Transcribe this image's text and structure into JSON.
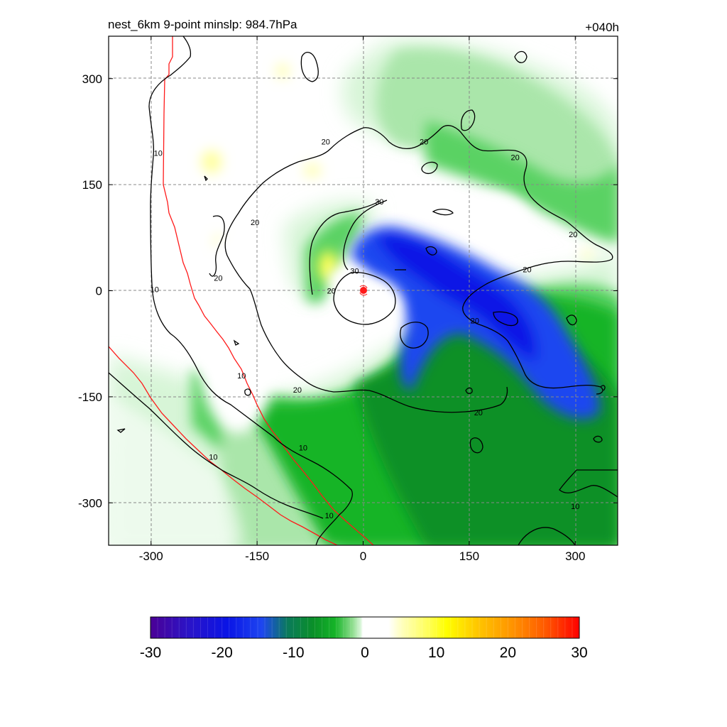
{
  "chart_data": {
    "type": "heatmap",
    "title_left": "nest_6km  9-point minslp: 984.7hPa",
    "title_right": "+040h",
    "xlabel": "",
    "ylabel": "",
    "xlim": [
      -360,
      360
    ],
    "ylim": [
      -360,
      360
    ],
    "x_ticks": [
      -300,
      -150,
      0,
      150,
      300
    ],
    "y_ticks": [
      300,
      150,
      0,
      -150,
      -300
    ],
    "grid": true,
    "colorbar": {
      "range": [
        -30,
        30
      ],
      "ticks": [
        -30,
        -20,
        -10,
        0,
        10,
        20,
        30
      ],
      "orientation": "horizontal"
    },
    "contour_levels": [
      10,
      20,
      30
    ],
    "contour_labels": [
      {
        "text": "10",
        "x": -290,
        "y": 195
      },
      {
        "text": "10",
        "x": -295,
        "y": 2
      },
      {
        "text": "10",
        "x": -172,
        "y": -120
      },
      {
        "text": "10",
        "x": -85,
        "y": -222
      },
      {
        "text": "10",
        "x": -212,
        "y": -235
      },
      {
        "text": "10",
        "x": -48,
        "y": -318
      },
      {
        "text": "10",
        "x": 300,
        "y": -305
      },
      {
        "text": "20",
        "x": -153,
        "y": 97
      },
      {
        "text": "20",
        "x": -205,
        "y": 18
      },
      {
        "text": "20",
        "x": -53,
        "y": 211
      },
      {
        "text": "20",
        "x": 86,
        "y": 211
      },
      {
        "text": "20",
        "x": 215,
        "y": 189
      },
      {
        "text": "20",
        "x": 297,
        "y": 80
      },
      {
        "text": "20",
        "x": 232,
        "y": 30
      },
      {
        "text": "20",
        "x": 158,
        "y": -42
      },
      {
        "text": "20",
        "x": -93,
        "y": -140
      },
      {
        "text": "20",
        "x": 163,
        "y": -172
      },
      {
        "text": "20",
        "x": -45,
        "y": 0
      },
      {
        "text": "30",
        "x": 23,
        "y": 126
      },
      {
        "text": "30",
        "x": -12,
        "y": 28
      }
    ],
    "storm_center": {
      "x": 0,
      "y": 0
    },
    "colors": {
      "deep_blue": "#0a14e6",
      "blue": "#1e46f0",
      "dark_green": "#0a9028",
      "green": "#15b428",
      "light_green": "#5ad264",
      "pale_green": "#aae6aa",
      "very_pale_green": "#d7f5d7",
      "pale_yellow": "#ffffaa",
      "yellow": "#ffff55",
      "contour": "#000000",
      "coastline": "#ff1a1a"
    }
  }
}
